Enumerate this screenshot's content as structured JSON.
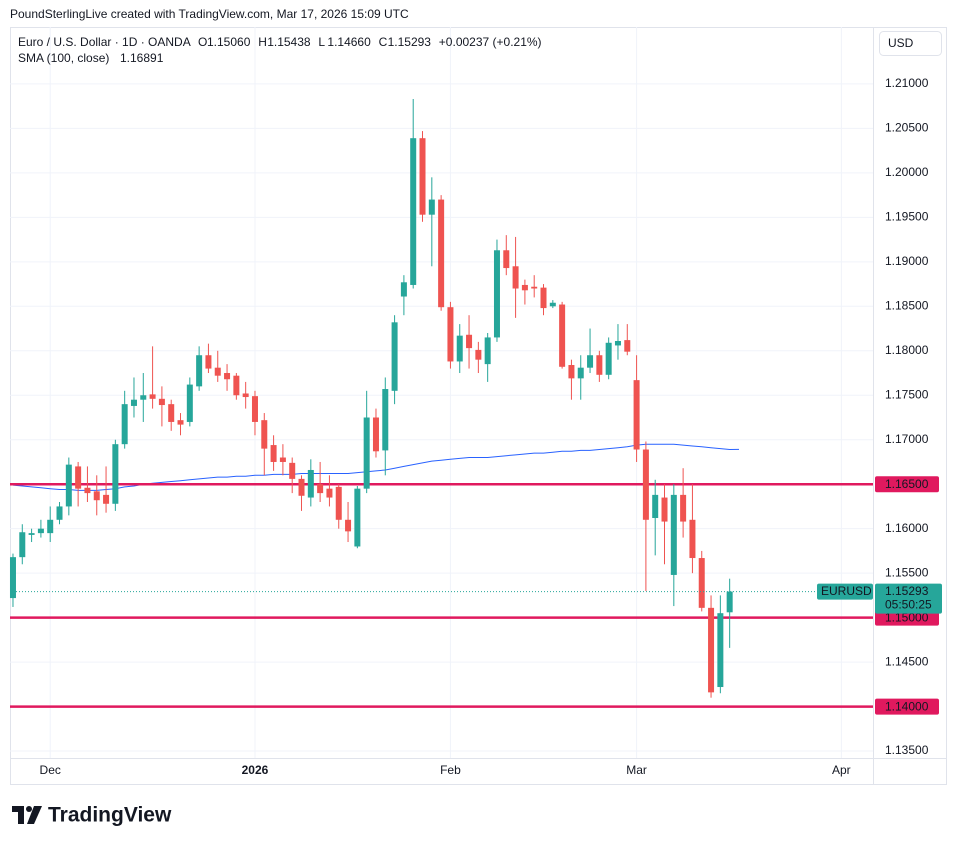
{
  "header": {
    "credit": "PoundSterlingLive created with TradingView.com, Mar 17, 2026 15:09 UTC",
    "currency_button": "USD",
    "brand": "TradingView"
  },
  "chart_data": {
    "type": "candlestick",
    "symbol": "Euro / U.S. Dollar · 1D · OANDA",
    "ohlc_legend": [
      {
        "key": "O",
        "value": 1.1506,
        "label": "1.15060"
      },
      {
        "key": "H",
        "value": 1.15438,
        "label": "1.15438"
      },
      {
        "key": "L",
        "value": 1.1466,
        "label": "1.14660"
      },
      {
        "key": "C",
        "value": 1.15293,
        "label": "1.15293"
      }
    ],
    "change": {
      "value": 0.00237,
      "label": "+0.00237 (+0.21%)"
    },
    "up_color": "#26a69a",
    "down_color": "#ef5350",
    "open": [
      1.1522,
      1.1568,
      1.1593,
      1.1595,
      1.1595,
      1.161,
      1.1625,
      1.167,
      1.1646,
      1.1642,
      1.1638,
      1.1628,
      1.1695,
      1.1738,
      1.1745,
      1.1751,
      1.1746,
      1.174,
      1.1722,
      1.172,
      1.176,
      1.1795,
      1.1781,
      1.1775,
      1.1772,
      1.1752,
      1.1749,
      1.1722,
      1.1694,
      1.168,
      1.1674,
      1.1656,
      1.1635,
      1.165,
      1.1645,
      1.1647,
      1.161,
      1.158,
      1.1645,
      1.1725,
      1.1688,
      1.1755,
      1.1861,
      1.1874,
      1.2039,
      1.1953,
      1.197,
      1.1849,
      1.1788,
      1.1818,
      1.1801,
      1.1785,
      1.1815,
      1.1913,
      1.1895,
      1.1874,
      1.1872,
      1.1871,
      1.185,
      1.1852,
      1.1784,
      1.1769,
      1.1781,
      1.1795,
      1.1773,
      1.1806,
      1.1812,
      1.1767,
      1.1689,
      1.1612,
      1.1635,
      1.1548,
      1.1638,
      1.161,
      1.1567,
      1.1511,
      1.1422,
      1.1506
    ],
    "high": [
      1.1572,
      1.1605,
      1.16,
      1.161,
      1.1625,
      1.163,
      1.168,
      1.1675,
      1.167,
      1.166,
      1.167,
      1.17,
      1.1755,
      1.177,
      1.1775,
      1.1805,
      1.176,
      1.1745,
      1.173,
      1.177,
      1.1805,
      1.1808,
      1.18,
      1.1785,
      1.1775,
      1.1765,
      1.1755,
      1.173,
      1.1705,
      1.1695,
      1.168,
      1.166,
      1.1678,
      1.1675,
      1.166,
      1.165,
      1.163,
      1.1648,
      1.1755,
      1.1735,
      1.177,
      1.184,
      1.1885,
      1.2083,
      1.2047,
      1.1995,
      1.1975,
      1.1855,
      1.183,
      1.184,
      1.181,
      1.182,
      1.1925,
      1.193,
      1.1928,
      1.188,
      1.1885,
      1.1875,
      1.1857,
      1.1855,
      1.179,
      1.1795,
      1.1825,
      1.18,
      1.1815,
      1.183,
      1.183,
      1.1795,
      1.1698,
      1.1655,
      1.165,
      1.165,
      1.1668,
      1.165,
      1.1575,
      1.1525,
      1.1525,
      1.15438
    ],
    "low": [
      1.1512,
      1.156,
      1.1585,
      1.159,
      1.1585,
      1.1605,
      1.1615,
      1.1625,
      1.163,
      1.1615,
      1.1618,
      1.162,
      1.169,
      1.1725,
      1.172,
      1.1735,
      1.1715,
      1.171,
      1.1705,
      1.1715,
      1.1755,
      1.1775,
      1.1765,
      1.1755,
      1.1745,
      1.1735,
      1.1705,
      1.166,
      1.1665,
      1.166,
      1.164,
      1.162,
      1.1625,
      1.163,
      1.1625,
      1.16,
      1.1585,
      1.1578,
      1.164,
      1.168,
      1.166,
      1.174,
      1.184,
      1.187,
      1.1945,
      1.1895,
      1.1845,
      1.178,
      1.1775,
      1.178,
      1.1775,
      1.1765,
      1.181,
      1.1885,
      1.1837,
      1.1852,
      1.186,
      1.184,
      1.1848,
      1.178,
      1.1745,
      1.1745,
      1.1775,
      1.1765,
      1.1768,
      1.179,
      1.1795,
      1.1675,
      1.153,
      1.157,
      1.156,
      1.1513,
      1.159,
      1.155,
      1.1507,
      1.141,
      1.1415,
      1.1466
    ],
    "close": [
      1.1568,
      1.1596,
      1.1595,
      1.16,
      1.161,
      1.1625,
      1.1672,
      1.1645,
      1.164,
      1.1632,
      1.1628,
      1.1695,
      1.174,
      1.1745,
      1.175,
      1.1746,
      1.1739,
      1.172,
      1.1717,
      1.1762,
      1.1795,
      1.178,
      1.1772,
      1.1768,
      1.175,
      1.1748,
      1.172,
      1.169,
      1.1675,
      1.1675,
      1.1656,
      1.1637,
      1.1666,
      1.164,
      1.1635,
      1.161,
      1.1597,
      1.1645,
      1.1725,
      1.1687,
      1.1757,
      1.1832,
      1.1877,
      1.2039,
      1.1953,
      1.197,
      1.1849,
      1.1788,
      1.1817,
      1.1803,
      1.179,
      1.1815,
      1.1913,
      1.1893,
      1.187,
      1.1868,
      1.187,
      1.1848,
      1.1854,
      1.1782,
      1.1769,
      1.1781,
      1.1795,
      1.1773,
      1.1809,
      1.1811,
      1.1799,
      1.1689,
      1.161,
      1.1638,
      1.1608,
      1.1638,
      1.1608,
      1.1567,
      1.1511,
      1.1416,
      1.1505,
      1.15293
    ],
    "sma": {
      "name": "SMA (100, close)",
      "color": "#2962ff",
      "legend_value": {
        "value": 1.16891,
        "label": "1.16891"
      },
      "values": [
        1.1649,
        1.1648,
        1.1647,
        1.1646,
        1.1645,
        1.1644,
        1.1644,
        1.1643,
        1.1643,
        1.1643,
        1.1644,
        1.1645,
        1.1647,
        1.1648,
        1.165,
        1.1651,
        1.1652,
        1.1653,
        1.1654,
        1.1655,
        1.1656,
        1.1657,
        1.1658,
        1.1658,
        1.1659,
        1.1659,
        1.166,
        1.166,
        1.1661,
        1.1661,
        1.1661,
        1.1662,
        1.1662,
        1.1662,
        1.1662,
        1.1662,
        1.1662,
        1.1663,
        1.1664,
        1.1665,
        1.1666,
        1.1668,
        1.167,
        1.1672,
        1.1674,
        1.1676,
        1.1677,
        1.1678,
        1.1679,
        1.168,
        1.168,
        1.168,
        1.1681,
        1.1682,
        1.1683,
        1.1684,
        1.1685,
        1.1685,
        1.1686,
        1.1687,
        1.1687,
        1.1688,
        1.1688,
        1.1689,
        1.169,
        1.1691,
        1.1692,
        1.1694,
        1.1695,
        1.1695,
        1.1695,
        1.1695,
        1.1694,
        1.1693,
        1.1692,
        1.1691,
        1.169,
        1.1689,
        1.16891
      ]
    },
    "levels": {
      "color": "#e0195e",
      "lines": [
        {
          "value": 1.165,
          "label": "1.16500"
        },
        {
          "value": 1.15,
          "label": "1.15000"
        },
        {
          "value": 1.14,
          "label": "1.14000"
        }
      ]
    },
    "current": {
      "symbol": "EURUSD",
      "value": 1.15293,
      "label": "1.15293",
      "countdown": "05:50:25"
    },
    "xlim": [
      -0.32,
      92.4
    ],
    "xticks": [
      {
        "value": 4,
        "label": "Dec"
      },
      {
        "value": 26,
        "label": "2026",
        "bold": true
      },
      {
        "value": 47,
        "label": "Feb"
      },
      {
        "value": 67,
        "label": "Mar"
      },
      {
        "value": 89,
        "label": "Apr"
      }
    ],
    "ylim": [
      1.13422,
      1.2164
    ],
    "yticks": [
      {
        "value": 1.21,
        "label": "1.21000"
      },
      {
        "value": 1.205,
        "label": "1.20500"
      },
      {
        "value": 1.2,
        "label": "1.20000"
      },
      {
        "value": 1.195,
        "label": "1.19500"
      },
      {
        "value": 1.19,
        "label": "1.19000"
      },
      {
        "value": 1.185,
        "label": "1.18500"
      },
      {
        "value": 1.18,
        "label": "1.18000"
      },
      {
        "value": 1.175,
        "label": "1.17500"
      },
      {
        "value": 1.17,
        "label": "1.17000"
      },
      {
        "value": 1.165,
        "label": "1.16500"
      },
      {
        "value": 1.16,
        "label": "1.16000"
      },
      {
        "value": 1.155,
        "label": "1.15500"
      },
      {
        "value": 1.15,
        "label": "1.15000"
      },
      {
        "value": 1.145,
        "label": "1.14500"
      },
      {
        "value": 1.14,
        "label": "1.14000"
      },
      {
        "value": 1.135,
        "label": "1.13500"
      }
    ],
    "grid": true
  }
}
